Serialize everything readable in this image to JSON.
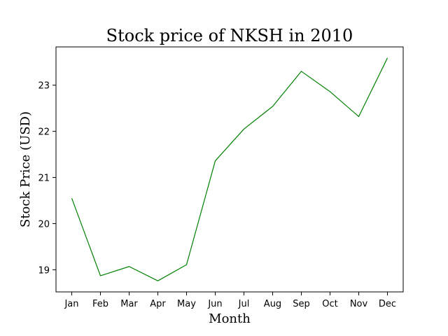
{
  "chart_data": {
    "type": "line",
    "title": "Stock price of NKSH in 2010",
    "xlabel": "Month",
    "ylabel": "Stock Price (USD)",
    "categories": [
      "Jan",
      "Feb",
      "Mar",
      "Apr",
      "May",
      "Jun",
      "Jul",
      "Aug",
      "Sep",
      "Oct",
      "Nov",
      "Dec"
    ],
    "series": [
      {
        "values": [
          20.55,
          18.87,
          19.07,
          18.76,
          19.11,
          21.36,
          22.05,
          22.54,
          23.3,
          22.86,
          22.32,
          23.59
        ],
        "color": "#008000"
      }
    ],
    "ylim": [
      18.52,
      23.83
    ],
    "yticks": [
      19,
      20,
      21,
      22,
      23
    ],
    "grid": false,
    "legend": "none"
  }
}
